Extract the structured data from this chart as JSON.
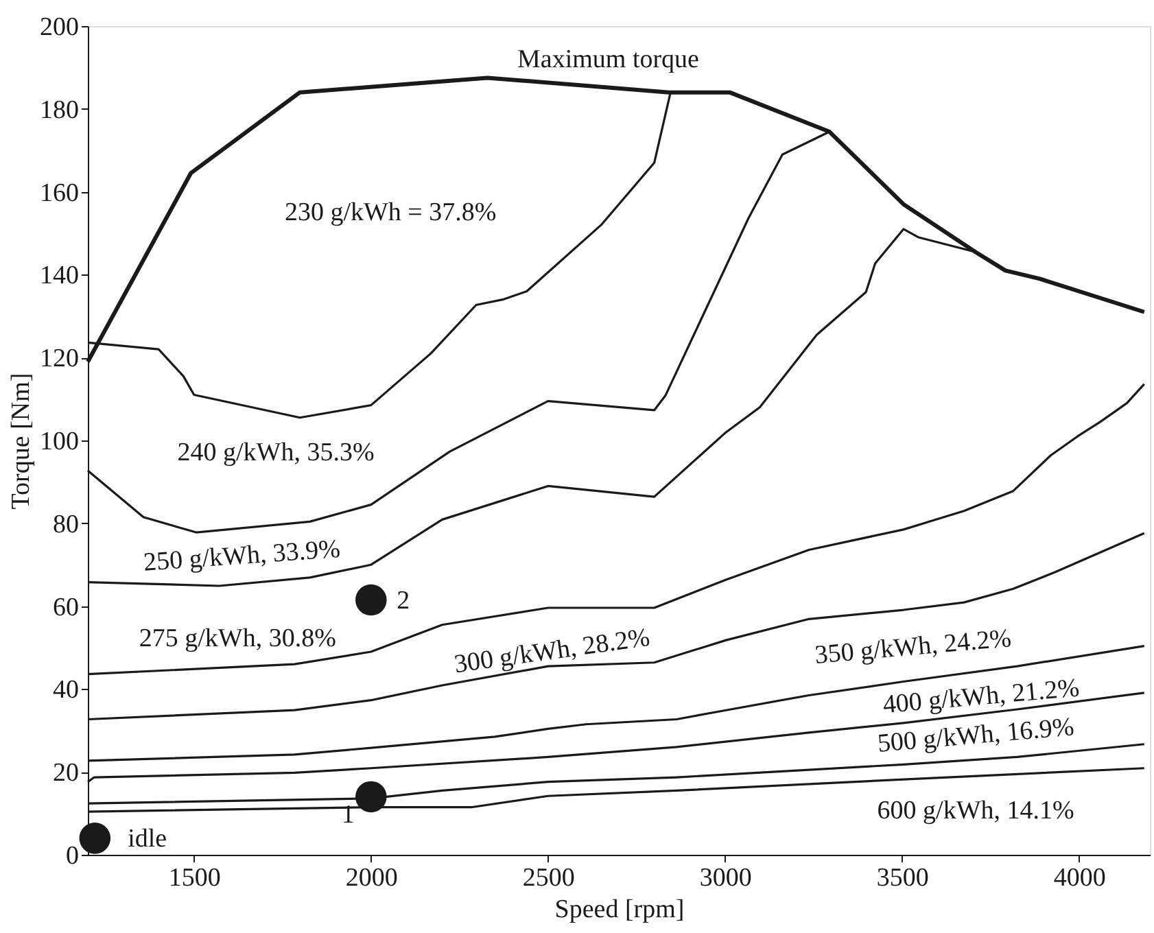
{
  "chart_data": {
    "type": "line",
    "xlabel": "Speed [rpm]",
    "ylabel": "Torque [Nm]",
    "xlim": [
      1200,
      4200
    ],
    "ylim": [
      0,
      200
    ],
    "xticks": [
      1500,
      2000,
      2500,
      3000,
      3500,
      4000
    ],
    "yticks": [
      0,
      20,
      40,
      60,
      80,
      100,
      120,
      140,
      160,
      180,
      200
    ],
    "grid": false,
    "marker": "none",
    "line_style": "solid",
    "series": [
      {
        "color": "#1a1a1a",
        "x": [
          1200,
          1491,
          1799,
          2329,
          2842,
          3013,
          3295,
          3504,
          3707,
          3792,
          3889,
          4184
        ],
        "values": [
          119,
          164.5,
          184,
          187.5,
          184,
          184,
          174.5,
          157,
          145.5,
          141,
          139,
          131
        ]
      },
      {
        "color": "#1a1a1a",
        "x": [
          1200,
          1400,
          1470,
          1500,
          1799,
          2000,
          2169,
          2297,
          2372,
          2440,
          2650,
          2800,
          2846
        ],
        "values": [
          123.6,
          122,
          115.5,
          111,
          105.5,
          108.5,
          121,
          132.7,
          134,
          136,
          152,
          167,
          184
        ]
      },
      {
        "color": "#1a1a1a",
        "x": [
          1200,
          1357,
          1506,
          1827,
          2000,
          2222,
          2500,
          2800,
          2832,
          3066,
          3162,
          3295
        ],
        "values": [
          92.7,
          81.5,
          77.8,
          80.4,
          84.5,
          97.3,
          109.5,
          107.3,
          110.9,
          153.6,
          169,
          174.5
        ]
      },
      {
        "color": "#1a1a1a",
        "x": [
          1200,
          1571,
          1827,
          2000,
          2201,
          2500,
          2800,
          3003,
          3098,
          3259,
          3398,
          3424,
          3504,
          3547,
          3707
        ],
        "values": [
          65.8,
          64.9,
          66.9,
          70,
          80.9,
          89,
          86.4,
          102,
          108,
          125.5,
          135.8,
          142.7,
          151,
          149,
          145.5
        ]
      },
      {
        "color": "#1a1a1a",
        "x": [
          1200,
          1784,
          2000,
          2201,
          2500,
          2800,
          3003,
          3237,
          3504,
          3675,
          3814,
          3920,
          3996,
          4060,
          4135,
          4184
        ],
        "values": [
          43.6,
          46,
          49,
          55.5,
          59.6,
          59.6,
          66.4,
          73.6,
          78.5,
          83,
          87.8,
          96.4,
          101,
          104.5,
          109,
          113.6
        ]
      },
      {
        "color": "#1a1a1a",
        "x": [
          1200,
          1784,
          2000,
          2201,
          2500,
          2800,
          3003,
          3237,
          3504,
          3675,
          3814,
          3932,
          4184
        ],
        "values": [
          32.7,
          34.9,
          37.3,
          40.9,
          45.5,
          46.4,
          51.8,
          56.9,
          59.1,
          60.9,
          64.2,
          68.2,
          77.6
        ]
      },
      {
        "color": "#1a1a1a",
        "x": [
          1200,
          1784,
          2000,
          2350,
          2500,
          2607,
          2863,
          3003,
          3237,
          3504,
          3825,
          4184
        ],
        "values": [
          22.7,
          24.2,
          25.8,
          28.5,
          30.4,
          31.5,
          32.7,
          34.9,
          38.5,
          41.8,
          45.5,
          50.4
        ]
      },
      {
        "color": "#1a1a1a",
        "x": [
          1200,
          1218,
          1784,
          2000,
          2500,
          2863,
          3237,
          3504,
          3825,
          4184
        ],
        "values": [
          17.6,
          18.7,
          19.8,
          20.9,
          23.6,
          26,
          29.5,
          31.8,
          35.1,
          39.1
        ]
      },
      {
        "color": "#1a1a1a",
        "x": [
          1200,
          2000,
          2201,
          2500,
          2863,
          3504,
          3825,
          4184
        ],
        "values": [
          12.4,
          13.6,
          15.5,
          17.6,
          18.7,
          21.8,
          23.6,
          26.7
        ]
      },
      {
        "color": "#1a1a1a",
        "x": [
          1200,
          2000,
          2286,
          2500,
          2863,
          3504,
          4184
        ],
        "values": [
          10.4,
          11.5,
          11.5,
          14.2,
          15.5,
          18.2,
          20.9
        ]
      },
      {
        "type": "scatter",
        "marker": "circle",
        "color": "#1a1a1a",
        "x": [
          1220,
          2000,
          2000
        ],
        "values": [
          4,
          14,
          61.5
        ]
      }
    ],
    "annotations": [
      "Maximum torque",
      "230 g/kWh = 37.8%",
      "240 g/kWh, 35.3%",
      "250 g/kWh, 33.9%",
      "275 g/kWh, 30.8%",
      "300 g/kWh, 28.2%",
      "350 g/kWh, 24.2%",
      "400 g/kWh, 21.2%",
      "500 g/kWh, 16.9%",
      "600 g/kWh, 14.1%",
      "idle",
      "1",
      "2"
    ]
  }
}
